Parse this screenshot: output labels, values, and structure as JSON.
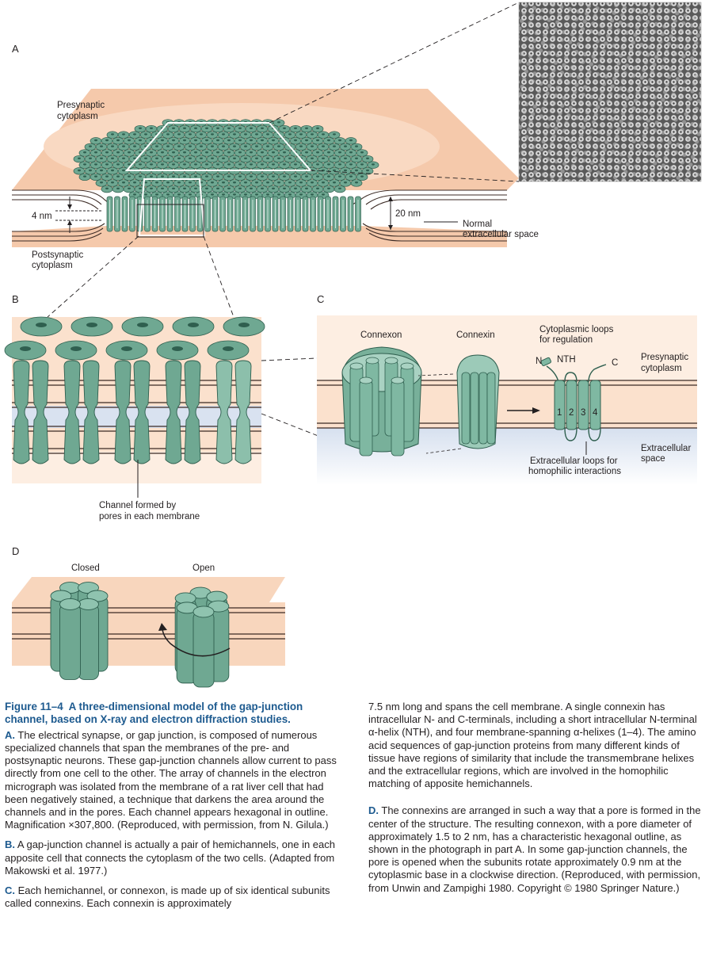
{
  "panels": {
    "A": {
      "letter": "A",
      "presynaptic": [
        "Presynaptic",
        "cytoplasm"
      ],
      "postsynaptic": [
        "Postsynaptic",
        "cytoplasm"
      ],
      "gap_width": "4 nm",
      "normal_width": "20 nm",
      "normal_space": [
        "Normal",
        "extracellular space"
      ]
    },
    "B": {
      "letter": "B",
      "channel_label": [
        "Channel formed by",
        "pores in each membrane"
      ]
    },
    "C": {
      "letter": "C",
      "connexon": "Connexon",
      "connexin": "Connexin",
      "loops_top": [
        "Cytoplasmic loops",
        "for regulation"
      ],
      "presynaptic": [
        "Presynaptic",
        "cytoplasm"
      ],
      "extracellular": [
        "Extracellular",
        "space"
      ],
      "loops_bottom": [
        "Extracellular loops for",
        "homophilic interactions"
      ],
      "n_label": "N",
      "nth_label": "NTH",
      "c_label": "C",
      "helix_numbers": [
        "1",
        "2",
        "3",
        "4"
      ]
    },
    "D": {
      "letter": "D",
      "closed": "Closed",
      "open": "Open"
    }
  },
  "caption": {
    "figure_number": "Figure 11–4",
    "title": "A three-dimensional model of the gap-junction channel, based on X-ray and electron diffraction studies.",
    "para_A_letter": "A.",
    "para_A": "The electrical synapse, or gap junction, is composed of numerous specialized channels that span the membranes of the pre- and postsynaptic neurons. These gap-junction channels allow current to pass directly from one cell to the other. The array of channels in the electron micrograph was isolated from the membrane of a rat liver cell that had been negatively stained, a technique that darkens the area around the channels and in the pores. Each channel appears hexagonal in outline. Magnification ×307,800. (Reproduced, with permission, from N. Gilula.)",
    "para_B_letter": "B.",
    "para_B": "A gap-junction channel is actually a pair of hemichannels, one in each apposite cell that connects the cytoplasm of the two cells. (Adapted from Makowski et al. 1977.)",
    "para_C_letter": "C.",
    "para_C1": "Each hemichannel, or connexon, is made up of six identical subunits called connexins. Each connexin is approximately",
    "para_C2": "7.5 nm long and spans the cell membrane. A single connexin has intracellular N- and C-terminals, including a short intracellular N-terminal α-helix (NTH), and four membrane-spanning α-helixes (1–4). The amino acid sequences of gap-junction proteins from many different kinds of tissue have regions of similarity that include the transmembrane helixes and the extracellular regions, which are involved in the homophilic matching of apposite hemichannels.",
    "para_D_letter": "D.",
    "para_D": "The connexins are arranged in such a way that a pore is formed in the center of the structure. The resulting connexon, with a pore diameter of approximately 1.5 to 2 nm, has a characteristic hexagonal outline, as shown in the photograph in part A. In some gap-junction channels, the pore is opened when the subunits rotate approximately 0.9 nm at the cytoplasmic base in a clockwise direction. (Reproduced, with permission, from Unwin and Zampighi 1980. Copyright © 1980 Springer Nature.)"
  },
  "colors": {
    "membrane": "#f5c9ab",
    "membrane_light": "#fbe3d0",
    "channel": "#6fa892",
    "channel_dark": "#3f7a65",
    "extracellular": "#d8e2f0",
    "caption_blue": "#1d5a8f"
  }
}
